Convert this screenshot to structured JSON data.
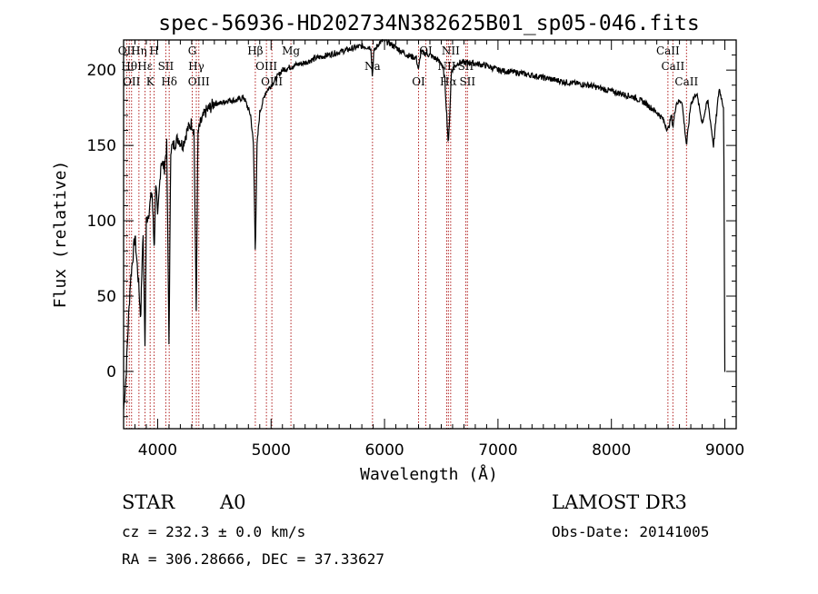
{
  "chart_data": {
    "type": "line",
    "title": "spec-56936-HD202734N382625B01_sp05-046.fits",
    "xlabel": "Wavelength (Å)",
    "ylabel": "Flux (relative)",
    "xlim": [
      3700,
      9100
    ],
    "ylim": [
      -38,
      220
    ],
    "x_ticks": [
      4000,
      5000,
      6000,
      7000,
      8000,
      9000
    ],
    "y_ticks": [
      0,
      50,
      100,
      150,
      200
    ],
    "spectrum_anchor_points": {
      "x": [
        3700,
        3720,
        3740,
        3760,
        3780,
        3800,
        3820,
        3835,
        3850,
        3870,
        3889,
        3900,
        3920,
        3950,
        3970,
        3985,
        4000,
        4030,
        4060,
        4080,
        4101,
        4115,
        4140,
        4180,
        4220,
        4260,
        4300,
        4320,
        4340,
        4355,
        4380,
        4420,
        4460,
        4500,
        4560,
        4620,
        4700,
        4760,
        4820,
        4845,
        4861,
        4876,
        4900,
        4950,
        5000,
        5050,
        5100,
        5200,
        5300,
        5400,
        5500,
        5600,
        5700,
        5800,
        5880,
        5893,
        5905,
        5950,
        6000,
        6100,
        6200,
        6280,
        6300,
        6320,
        6400,
        6500,
        6530,
        6563,
        6590,
        6650,
        6750,
        6900,
        7000,
        7200,
        7400,
        7600,
        7800,
        8000,
        8200,
        8300,
        8400,
        8450,
        8498,
        8530,
        8542,
        8570,
        8620,
        8662,
        8700,
        8750,
        8800,
        8850,
        8900,
        8950,
        8990,
        9000
      ],
      "y": [
        -25,
        -5,
        30,
        60,
        75,
        90,
        70,
        55,
        35,
        95,
        15,
        100,
        105,
        120,
        80,
        130,
        100,
        140,
        135,
        150,
        15,
        148,
        150,
        155,
        150,
        160,
        165,
        160,
        40,
        158,
        165,
        172,
        175,
        178,
        178,
        180,
        180,
        182,
        170,
        150,
        78,
        150,
        172,
        185,
        190,
        195,
        200,
        203,
        205,
        208,
        210,
        212,
        214,
        216,
        215,
        195,
        212,
        218,
        220,
        215,
        210,
        208,
        200,
        212,
        210,
        205,
        195,
        150,
        200,
        205,
        205,
        203,
        200,
        198,
        195,
        192,
        190,
        186,
        182,
        178,
        172,
        168,
        160,
        170,
        162,
        178,
        180,
        150,
        178,
        185,
        165,
        180,
        150,
        188,
        175,
        -2
      ]
    },
    "line_markers": [
      {
        "name": "OII",
        "wavelength": 3727
      },
      {
        "name": "Hθ",
        "wavelength": 3750
      },
      {
        "name": "OII",
        "wavelength": 3770
      },
      {
        "name": "Hη",
        "wavelength": 3835
      },
      {
        "name": "Hε",
        "wavelength": 3889
      },
      {
        "name": "K",
        "wavelength": 3934
      },
      {
        "name": "H",
        "wavelength": 3969
      },
      {
        "name": "SII",
        "wavelength": 4072
      },
      {
        "name": "Hδ",
        "wavelength": 4102
      },
      {
        "name": "G",
        "wavelength": 4305
      },
      {
        "name": "Hγ",
        "wavelength": 4341
      },
      {
        "name": "OIII",
        "wavelength": 4363
      },
      {
        "name": "Hβ",
        "wavelength": 4861
      },
      {
        "name": "OIII",
        "wavelength": 4959
      },
      {
        "name": "OIII",
        "wavelength": 5007
      },
      {
        "name": "Mg",
        "wavelength": 5175
      },
      {
        "name": "Na",
        "wavelength": 5894
      },
      {
        "name": "OI",
        "wavelength": 6300
      },
      {
        "name": "OI",
        "wavelength": 6364
      },
      {
        "name": "NII",
        "wavelength": 6548
      },
      {
        "name": "Hα",
        "wavelength": 6563
      },
      {
        "name": "NII",
        "wavelength": 6583
      },
      {
        "name": "SII",
        "wavelength": 6716
      },
      {
        "name": "SII",
        "wavelength": 6731
      },
      {
        "name": "CaII",
        "wavelength": 8498
      },
      {
        "name": "CaII",
        "wavelength": 8542
      },
      {
        "name": "CaII",
        "wavelength": 8662
      }
    ],
    "marker_color": "#b22222",
    "line_color": "#000000"
  },
  "info": {
    "class_label": "STAR",
    "subclass_label": "A0",
    "cz_text": "cz = 232.3 ± 0.0 km/s",
    "radec_text": "RA = 306.28666, DEC =  37.33627",
    "survey_label": "LAMOST DR3",
    "obs_date_text": "Obs-Date: 20141005"
  }
}
